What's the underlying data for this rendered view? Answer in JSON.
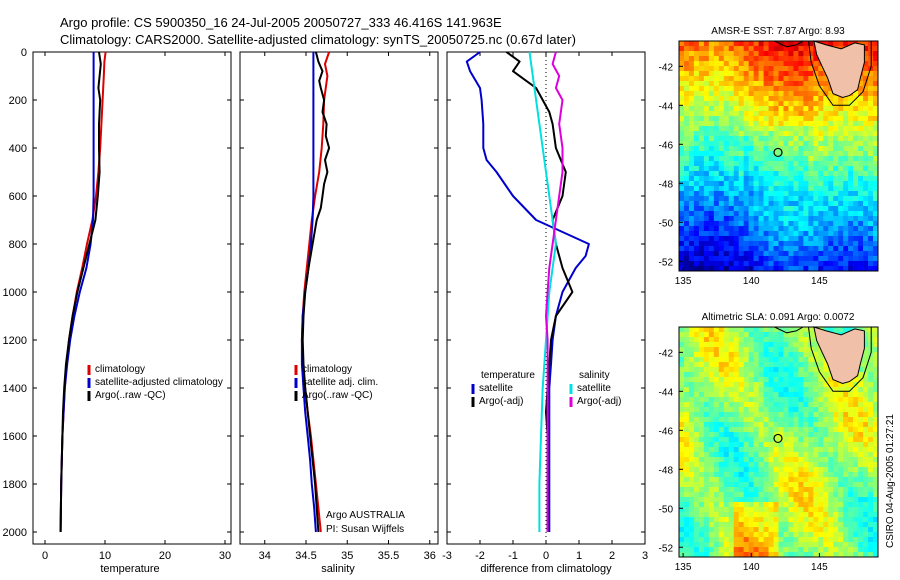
{
  "header": {
    "line1": "Argo profile: CS 5900350_16 24-Jul-2005 20050727_333 46.416S 141.963E",
    "line2": "Climatology: CARS2000. Satellite-adjusted climatology: synTS_20050725.nc (0.67d later)"
  },
  "credits": {
    "org": "Argo AUSTRALIA",
    "pi": "PI: Susan Wijffels",
    "stamp": "CSIRO 04-Aug-2005 01:27:21"
  },
  "colors": {
    "climatology": "#dd0000",
    "satellite": "#0000cc",
    "argo": "#000000",
    "satellite_salinity": "#00e0e0",
    "argo_salinity": "#dd00dd"
  },
  "chart_data": [
    {
      "type": "line",
      "id": "temperature",
      "xlabel": "temperature",
      "xlim": [
        -2,
        31
      ],
      "ylim": [
        2050,
        0
      ],
      "y_reversed": true,
      "xticks": [
        0,
        10,
        20,
        30
      ],
      "yticks": [
        0,
        200,
        400,
        600,
        800,
        1000,
        1200,
        1400,
        1600,
        1800,
        2000
      ],
      "legend": {
        "placement": "lower-right",
        "entries": [
          "climatology",
          "satellite-adjusted climatology",
          "Argo(..raw -QC)"
        ]
      },
      "series": [
        {
          "name": "climatology",
          "color": "#dd0000",
          "points": [
            [
              10.1,
              0
            ],
            [
              9.9,
              40
            ],
            [
              9.8,
              100
            ],
            [
              9.6,
              200
            ],
            [
              9.4,
              300
            ],
            [
              9.2,
              400
            ],
            [
              8.9,
              500
            ],
            [
              8.5,
              600
            ],
            [
              7.9,
              700
            ],
            [
              7.0,
              800
            ],
            [
              6.2,
              900
            ],
            [
              5.3,
              1000
            ],
            [
              4.6,
              1100
            ],
            [
              4.0,
              1200
            ],
            [
              3.6,
              1300
            ],
            [
              3.3,
              1400
            ],
            [
              3.1,
              1500
            ],
            [
              2.9,
              1600
            ],
            [
              2.8,
              1700
            ],
            [
              2.7,
              1800
            ],
            [
              2.65,
              1900
            ],
            [
              2.6,
              2000
            ]
          ]
        },
        {
          "name": "satellite-adjusted climatology",
          "color": "#0000cc",
          "points": [
            [
              8.1,
              0
            ],
            [
              8.1,
              100
            ],
            [
              8.1,
              200
            ],
            [
              8.1,
              300
            ],
            [
              8.1,
              400
            ],
            [
              8.1,
              500
            ],
            [
              8.1,
              600
            ],
            [
              8.0,
              700
            ],
            [
              7.6,
              800
            ],
            [
              6.9,
              900
            ],
            [
              5.8,
              1000
            ],
            [
              4.9,
              1100
            ],
            [
              4.2,
              1200
            ],
            [
              3.7,
              1300
            ],
            [
              3.3,
              1400
            ],
            [
              3.1,
              1500
            ],
            [
              2.9,
              1600
            ],
            [
              2.8,
              1700
            ],
            [
              2.7,
              1800
            ],
            [
              2.65,
              1900
            ],
            [
              2.6,
              2000
            ]
          ]
        },
        {
          "name": "Argo(..raw -QC)",
          "color": "#000000",
          "points": [
            [
              9.0,
              0
            ],
            [
              9.3,
              50
            ],
            [
              9.1,
              100
            ],
            [
              8.9,
              150
            ],
            [
              9.2,
              200
            ],
            [
              9.0,
              300
            ],
            [
              9.0,
              400
            ],
            [
              9.1,
              500
            ],
            [
              8.8,
              600
            ],
            [
              8.4,
              700
            ],
            [
              7.4,
              800
            ],
            [
              6.4,
              900
            ],
            [
              5.4,
              1000
            ],
            [
              4.6,
              1100
            ],
            [
              4.0,
              1200
            ],
            [
              3.5,
              1300
            ],
            [
              3.2,
              1400
            ],
            [
              3.0,
              1500
            ],
            [
              2.9,
              1600
            ],
            [
              2.8,
              1700
            ],
            [
              2.7,
              1800
            ],
            [
              2.65,
              1900
            ],
            [
              2.6,
              2000
            ]
          ]
        }
      ]
    },
    {
      "type": "line",
      "id": "salinity",
      "xlabel": "salinity",
      "xlim": [
        33.7,
        36.1
      ],
      "ylim": [
        2050,
        0
      ],
      "y_reversed": true,
      "xticks": [
        34,
        34.5,
        35,
        35.5,
        36
      ],
      "legend": {
        "placement": "lower-right",
        "entries": [
          "climatology",
          "satellite adj. clim.",
          "Argo(..raw -QC)"
        ]
      },
      "series": [
        {
          "name": "climatology",
          "color": "#dd0000",
          "points": [
            [
              34.78,
              0
            ],
            [
              34.73,
              50
            ],
            [
              34.76,
              100
            ],
            [
              34.72,
              200
            ],
            [
              34.71,
              300
            ],
            [
              34.69,
              400
            ],
            [
              34.66,
              500
            ],
            [
              34.61,
              600
            ],
            [
              34.57,
              700
            ],
            [
              34.54,
              800
            ],
            [
              34.51,
              900
            ],
            [
              34.48,
              1000
            ],
            [
              34.46,
              1100
            ],
            [
              34.45,
              1200
            ],
            [
              34.46,
              1300
            ],
            [
              34.49,
              1400
            ],
            [
              34.52,
              1500
            ],
            [
              34.56,
              1600
            ],
            [
              34.59,
              1700
            ],
            [
              34.62,
              1800
            ],
            [
              34.65,
              1900
            ],
            [
              34.68,
              2000
            ]
          ]
        },
        {
          "name": "satellite adj. clim.",
          "color": "#0000cc",
          "points": [
            [
              34.59,
              0
            ],
            [
              34.59,
              100
            ],
            [
              34.59,
              200
            ],
            [
              34.59,
              300
            ],
            [
              34.59,
              400
            ],
            [
              34.59,
              500
            ],
            [
              34.59,
              600
            ],
            [
              34.58,
              700
            ],
            [
              34.56,
              800
            ],
            [
              34.53,
              900
            ],
            [
              34.49,
              1000
            ],
            [
              34.46,
              1100
            ],
            [
              34.45,
              1200
            ],
            [
              34.45,
              1300
            ],
            [
              34.47,
              1400
            ],
            [
              34.49,
              1500
            ],
            [
              34.52,
              1600
            ],
            [
              34.55,
              1700
            ],
            [
              34.57,
              1800
            ],
            [
              34.6,
              1900
            ],
            [
              34.62,
              2000
            ]
          ]
        },
        {
          "name": "Argo(..raw -QC)",
          "color": "#000000",
          "points": [
            [
              34.62,
              0
            ],
            [
              34.65,
              40
            ],
            [
              34.7,
              80
            ],
            [
              34.66,
              120
            ],
            [
              34.68,
              150
            ],
            [
              34.72,
              200
            ],
            [
              34.7,
              250
            ],
            [
              34.75,
              300
            ],
            [
              34.74,
              350
            ],
            [
              34.78,
              400
            ],
            [
              34.73,
              450
            ],
            [
              34.76,
              500
            ],
            [
              34.72,
              550
            ],
            [
              34.7,
              600
            ],
            [
              34.68,
              650
            ],
            [
              34.63,
              700
            ],
            [
              34.58,
              800
            ],
            [
              34.53,
              900
            ],
            [
              34.49,
              1000
            ],
            [
              34.47,
              1100
            ],
            [
              34.46,
              1200
            ],
            [
              34.47,
              1300
            ],
            [
              34.49,
              1400
            ],
            [
              34.52,
              1500
            ],
            [
              34.55,
              1600
            ],
            [
              34.58,
              1700
            ],
            [
              34.61,
              1800
            ],
            [
              34.63,
              1900
            ],
            [
              34.65,
              2000
            ]
          ]
        }
      ]
    },
    {
      "type": "line",
      "id": "difference",
      "xlabel": "difference from climatology",
      "xlim": [
        -3,
        3
      ],
      "ylim": [
        2050,
        0
      ],
      "y_reversed": true,
      "xticks": [
        -3,
        -2,
        -1,
        0,
        1,
        2,
        3
      ],
      "zero_line": true,
      "legend": {
        "placement": "lower-center",
        "groups": [
          {
            "heading": "temperature",
            "entries": [
              "satellite",
              "Argo(-adj)"
            ]
          },
          {
            "heading": "salinity",
            "entries": [
              "satellite",
              "Argo(-adj)"
            ]
          }
        ]
      },
      "series": [
        {
          "name": "satellite",
          "group": "temperature",
          "color": "#0000cc",
          "points": [
            [
              -2.0,
              0
            ],
            [
              -2.4,
              40
            ],
            [
              -2.3,
              80
            ],
            [
              -2.0,
              150
            ],
            [
              -1.95,
              200
            ],
            [
              -1.9,
              300
            ],
            [
              -1.9,
              400
            ],
            [
              -1.8,
              450
            ],
            [
              -1.5,
              500
            ],
            [
              -1.0,
              600
            ],
            [
              -0.3,
              700
            ],
            [
              0.5,
              750
            ],
            [
              1.3,
              800
            ],
            [
              1.2,
              850
            ],
            [
              0.9,
              900
            ],
            [
              0.5,
              1000
            ],
            [
              0.3,
              1100
            ],
            [
              0.2,
              1200
            ],
            [
              0.15,
              1300
            ],
            [
              0.1,
              1400
            ],
            [
              0.1,
              1600
            ],
            [
              0.1,
              1800
            ],
            [
              0.1,
              2000
            ]
          ]
        },
        {
          "name": "Argo(-adj)",
          "group": "temperature",
          "color": "#000000",
          "points": [
            [
              -1.2,
              0
            ],
            [
              -0.8,
              40
            ],
            [
              -1.0,
              80
            ],
            [
              -0.6,
              120
            ],
            [
              -0.3,
              150
            ],
            [
              -0.1,
              200
            ],
            [
              0.1,
              250
            ],
            [
              0.2,
              300
            ],
            [
              0.3,
              400
            ],
            [
              0.6,
              500
            ],
            [
              0.5,
              600
            ],
            [
              0.2,
              700
            ],
            [
              0.3,
              800
            ],
            [
              0.5,
              900
            ],
            [
              0.8,
              1000
            ],
            [
              0.3,
              1100
            ],
            [
              0.15,
              1200
            ],
            [
              0.1,
              1300
            ],
            [
              0.05,
              1400
            ],
            [
              0.0,
              1500
            ],
            [
              0.05,
              1600
            ],
            [
              0.05,
              1800
            ],
            [
              0.05,
              2000
            ]
          ]
        },
        {
          "name": "satellite",
          "group": "salinity",
          "color": "#00e0e0",
          "points": [
            [
              -0.5,
              0
            ],
            [
              -0.4,
              100
            ],
            [
              -0.3,
              200
            ],
            [
              -0.2,
              300
            ],
            [
              -0.1,
              400
            ],
            [
              0.0,
              500
            ],
            [
              0.1,
              600
            ],
            [
              0.2,
              700
            ],
            [
              0.3,
              800
            ],
            [
              0.2,
              900
            ],
            [
              0.1,
              1000
            ],
            [
              0.0,
              1200
            ],
            [
              -0.1,
              1400
            ],
            [
              -0.15,
              1600
            ],
            [
              -0.2,
              1800
            ],
            [
              -0.2,
              2000
            ]
          ]
        },
        {
          "name": "Argo(-adj)",
          "group": "salinity",
          "color": "#dd00dd",
          "points": [
            [
              0.3,
              0
            ],
            [
              0.2,
              50
            ],
            [
              0.4,
              100
            ],
            [
              0.3,
              150
            ],
            [
              0.5,
              200
            ],
            [
              0.4,
              300
            ],
            [
              0.5,
              400
            ],
            [
              0.5,
              500
            ],
            [
              0.4,
              600
            ],
            [
              0.3,
              700
            ],
            [
              0.2,
              800
            ],
            [
              0.1,
              900
            ],
            [
              0.05,
              1000
            ],
            [
              0.0,
              1100
            ],
            [
              0.05,
              1200
            ],
            [
              0.05,
              1400
            ],
            [
              0.05,
              1600
            ],
            [
              0.05,
              1800
            ],
            [
              0.05,
              2000
            ]
          ]
        }
      ]
    },
    {
      "type": "heatmap",
      "id": "sst-map",
      "title": "AMSR-E SST: 7.87 Argo: 8.93",
      "xlim": [
        134.7,
        149.3
      ],
      "ylim": [
        -52.5,
        -40.7
      ],
      "xticks": [
        135,
        140,
        145
      ],
      "yticks": [
        -42,
        -44,
        -46,
        -48,
        -50,
        -52
      ],
      "marker": {
        "lon": 141.963,
        "lat": -46.416
      },
      "colormap": "jet"
    },
    {
      "type": "heatmap",
      "id": "sla-map",
      "title": "Altimetric SLA: 0.091 Argo: 0.0072",
      "xlim": [
        134.7,
        149.3
      ],
      "ylim": [
        -52.5,
        -40.7
      ],
      "xticks": [
        135,
        140,
        145
      ],
      "yticks": [
        -42,
        -44,
        -46,
        -48,
        -50,
        -52
      ],
      "marker": {
        "lon": 141.963,
        "lat": -46.416
      },
      "colormap": "jet"
    }
  ]
}
